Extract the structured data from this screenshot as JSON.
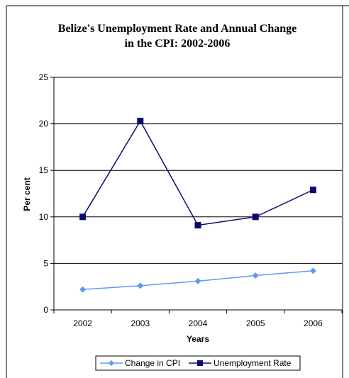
{
  "chart_data": {
    "type": "line",
    "title_lines": [
      "Belize's Unemployment Rate and Annual Change",
      "in the CPI: 2002-2006"
    ],
    "xlabel": "Years",
    "ylabel": "Per cent",
    "categories": [
      "2002",
      "2003",
      "2004",
      "2005",
      "2006"
    ],
    "ylim": [
      0,
      25
    ],
    "yticks": [
      "0",
      "5",
      "10",
      "15",
      "20",
      "25"
    ],
    "grid": true,
    "legend_position": "bottom",
    "series": [
      {
        "name": "Change in CPI",
        "values": [
          2.2,
          2.6,
          3.1,
          3.7,
          4.2
        ],
        "color": "#5b9bef",
        "marker": "diamond"
      },
      {
        "name": "Unemployment Rate",
        "values": [
          10.0,
          20.3,
          9.1,
          10.0,
          12.9
        ],
        "color": "#0a0a6e",
        "marker": "square"
      }
    ]
  }
}
